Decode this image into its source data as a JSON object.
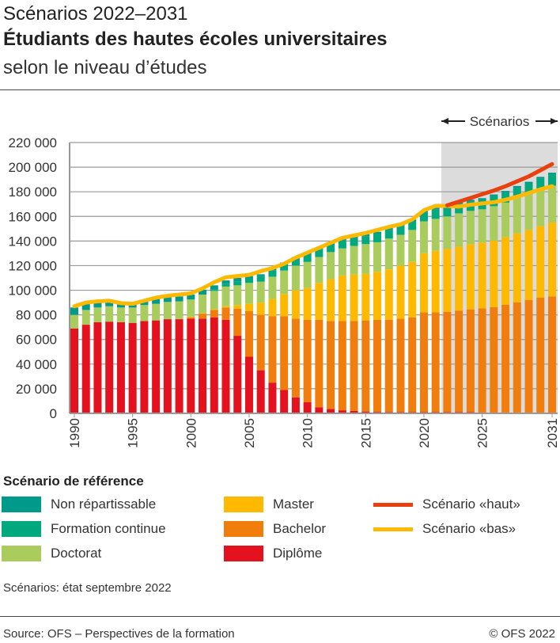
{
  "header": {
    "title": "Scénarios 2022–2031",
    "subtitle": "Étudiants des hautes écoles universitaires",
    "subtitle2": "selon le niveau d’études"
  },
  "chart_data": {
    "type": "bar",
    "stacked": true,
    "scenario_label": "Scénarios",
    "scenario_start": 2022,
    "ylim": [
      0,
      220000
    ],
    "yticks": [
      0,
      20000,
      40000,
      60000,
      80000,
      100000,
      120000,
      140000,
      160000,
      180000,
      200000,
      220000
    ],
    "ytick_labels": [
      "0",
      "20 000",
      "40 000",
      "60 000",
      "80 000",
      "100 000",
      "120 000",
      "140 000",
      "160 000",
      "180 000",
      "200 000",
      "220 000"
    ],
    "xtick_labels": [
      "1990",
      "1995",
      "2000",
      "2005",
      "2010",
      "2015",
      "2020",
      "2025",
      "2031"
    ],
    "grid": true,
    "categories": [
      1990,
      1991,
      1992,
      1993,
      1994,
      1995,
      1996,
      1997,
      1998,
      1999,
      2000,
      2001,
      2002,
      2003,
      2004,
      2005,
      2006,
      2007,
      2008,
      2009,
      2010,
      2011,
      2012,
      2013,
      2014,
      2015,
      2016,
      2017,
      2018,
      2019,
      2020,
      2021,
      2022,
      2023,
      2024,
      2025,
      2026,
      2027,
      2028,
      2029,
      2030,
      2031
    ],
    "series": [
      {
        "name": "Diplôme",
        "color": "#e3121e",
        "values": [
          69000,
          72000,
          74000,
          74500,
          74000,
          73500,
          75000,
          75500,
          76500,
          76500,
          77000,
          77000,
          78000,
          76000,
          63000,
          46000,
          35000,
          25000,
          19000,
          13000,
          9000,
          5000,
          3500,
          2500,
          2000,
          1500,
          1200,
          1000,
          1000,
          1000,
          1000,
          1000,
          1000,
          1000,
          1000,
          800,
          800,
          700,
          700,
          600,
          600,
          500
        ]
      },
      {
        "name": "Bachelor",
        "color": "#f07d0c",
        "values": [
          0,
          0,
          0,
          0,
          0,
          0,
          0,
          0,
          0,
          0,
          1000,
          4000,
          6000,
          10000,
          22000,
          37000,
          45000,
          54000,
          60000,
          64000,
          67000,
          71000,
          71500,
          72500,
          73000,
          74000,
          74800,
          75000,
          76000,
          77000,
          81000,
          81000,
          81500,
          82500,
          83500,
          84500,
          85500,
          87500,
          89500,
          91500,
          93500,
          94500
        ]
      },
      {
        "name": "Master",
        "color": "#ffb900",
        "values": [
          0,
          0,
          0,
          0,
          0,
          0,
          0,
          0,
          0,
          0,
          500,
          500,
          500,
          1000,
          3000,
          6000,
          10000,
          14000,
          18000,
          23000,
          26000,
          30000,
          34000,
          37000,
          38000,
          38000,
          39000,
          41000,
          43000,
          45000,
          48000,
          50000,
          51000,
          52000,
          53000,
          53500,
          54000,
          55000,
          56000,
          57000,
          58000,
          60000
        ]
      },
      {
        "name": "Doctorat",
        "color": "#aacc5c",
        "values": [
          11000,
          12000,
          12000,
          12500,
          12000,
          12500,
          13000,
          13500,
          14000,
          14500,
          14000,
          15000,
          15000,
          16000,
          16000,
          17000,
          17000,
          18000,
          19000,
          20000,
          21000,
          21000,
          22000,
          22000,
          23000,
          24000,
          24000,
          25000,
          25000,
          26000,
          26000,
          26000,
          26500,
          27000,
          27000,
          27000,
          28000,
          28000,
          29000,
          29000,
          30000,
          30000
        ]
      },
      {
        "name": "Formation continue",
        "color": "#00a87e",
        "values": [
          0,
          0,
          0,
          0,
          0,
          0,
          0,
          0,
          0,
          0,
          0,
          0,
          1000,
          2000,
          3000,
          4000,
          4500,
          5000,
          5000,
          5500,
          6000,
          6000,
          6000,
          6500,
          6500,
          6500,
          7000,
          7000,
          7000,
          7000,
          7000,
          7500,
          7500,
          7500,
          7500,
          7500,
          8000,
          8000,
          8000,
          8500,
          8500,
          9000
        ]
      },
      {
        "name": "Non répartissable",
        "color": "#009a8b",
        "values": [
          6000,
          5000,
          4500,
          4500,
          4500,
          4000,
          4000,
          4000,
          4000,
          4000,
          4000,
          4000,
          3500,
          3000,
          3000,
          1500,
          1500,
          1500,
          1500,
          1500,
          1500,
          1500,
          1500,
          1500,
          1500,
          1500,
          1500,
          1500,
          1500,
          1500,
          1500,
          1500,
          1500,
          1500,
          1500,
          1500,
          1500,
          1500,
          1500,
          1500,
          1500,
          1500
        ]
      }
    ],
    "lines": [
      {
        "name": "Scénario «haut»",
        "color": "#e8400f",
        "x": [
          2022,
          2023,
          2024,
          2025,
          2026,
          2027,
          2028,
          2029,
          2030,
          2031
        ],
        "values": [
          169000,
          172000,
          175000,
          178000,
          181000,
          184500,
          188500,
          192500,
          197500,
          202500
        ]
      },
      {
        "name": "Scénario «bas»",
        "color": "#ffb900",
        "x": [
          1990,
          1991,
          1992,
          1993,
          1994,
          1995,
          1996,
          1997,
          1998,
          1999,
          2000,
          2001,
          2002,
          2003,
          2004,
          2005,
          2006,
          2007,
          2008,
          2009,
          2010,
          2011,
          2012,
          2013,
          2014,
          2015,
          2016,
          2017,
          2018,
          2019,
          2020,
          2021,
          2022,
          2023,
          2024,
          2025,
          2026,
          2027,
          2028,
          2029,
          2030,
          2031
        ],
        "values": [
          87000,
          90000,
          91000,
          91500,
          89500,
          89000,
          91500,
          94000,
          95500,
          96500,
          97500,
          101500,
          106500,
          110500,
          111500,
          112500,
          115500,
          118000,
          121500,
          126500,
          130500,
          134500,
          138500,
          142500,
          144500,
          146500,
          149000,
          151500,
          153500,
          157500,
          165000,
          168500,
          168500,
          168000,
          169500,
          170500,
          171500,
          173500,
          176000,
          179000,
          182000,
          184500
        ]
      }
    ]
  },
  "legend": {
    "title": "Scénario de référence",
    "items": [
      {
        "label": "Non répartissable",
        "color": "#009a8b"
      },
      {
        "label": "Formation continue",
        "color": "#00a87e"
      },
      {
        "label": "Doctorat",
        "color": "#aacc5c"
      },
      {
        "label": "Master",
        "color": "#ffb900"
      },
      {
        "label": "Bachelor",
        "color": "#f07d0c"
      },
      {
        "label": "Diplôme",
        "color": "#e3121e"
      },
      {
        "label": "Scénario «haut»",
        "color": "#e8400f"
      },
      {
        "label": "Scénario «bas»",
        "color": "#ffb900"
      }
    ]
  },
  "footer": {
    "note": "Scénarios: état septembre 2022",
    "source": "Source: OFS – Perspectives de la formation",
    "copyright": "© OFS 2022"
  }
}
